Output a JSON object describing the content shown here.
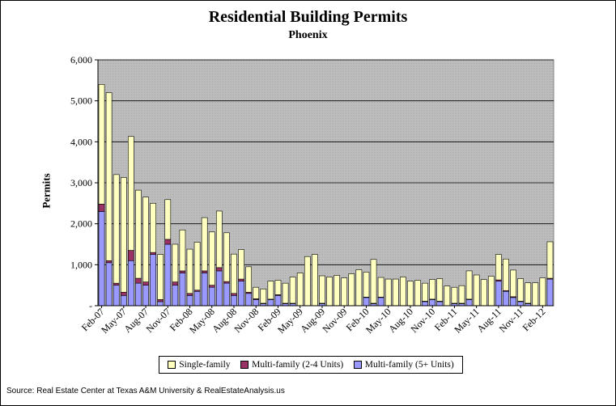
{
  "colors": {
    "single_family": "#ffffc0",
    "multi_2_4": "#993366",
    "multi_5plus": "#9999ff",
    "plot_bg": "#c0c0c0"
  },
  "chart_data": {
    "type": "bar",
    "stacked": true,
    "title": "Residential Building Permits",
    "subtitle": "Phoenix",
    "ylabel": "Permits",
    "xlabel": "",
    "ylim": [
      0,
      6000
    ],
    "yticks": [
      0,
      1000,
      2000,
      3000,
      4000,
      5000,
      6000
    ],
    "ytick_labels": [
      "-",
      "1,000",
      "2,000",
      "3,000",
      "4,000",
      "5,000",
      "6,000"
    ],
    "grid": true,
    "legend_position": "bottom",
    "x_tick_labels": [
      {
        "index": 0,
        "label": "Feb-07"
      },
      {
        "index": 3,
        "label": "May-07"
      },
      {
        "index": 6,
        "label": "Aug-07"
      },
      {
        "index": 9,
        "label": "Nov-07"
      },
      {
        "index": 12,
        "label": "Feb-08"
      },
      {
        "index": 15,
        "label": "May-08"
      },
      {
        "index": 18,
        "label": "Aug-08"
      },
      {
        "index": 21,
        "label": "Nov-08"
      },
      {
        "index": 24,
        "label": "Feb-09"
      },
      {
        "index": 27,
        "label": "May-09"
      },
      {
        "index": 30,
        "label": "Aug-09"
      },
      {
        "index": 33,
        "label": "Nov-09"
      },
      {
        "index": 36,
        "label": "Feb-10"
      },
      {
        "index": 39,
        "label": "May-10"
      },
      {
        "index": 42,
        "label": "Aug-10"
      },
      {
        "index": 45,
        "label": "Nov-10"
      },
      {
        "index": 48,
        "label": "Feb-11"
      },
      {
        "index": 51,
        "label": "May-11"
      },
      {
        "index": 54,
        "label": "Aug-11"
      },
      {
        "index": 57,
        "label": "Nov-11"
      },
      {
        "index": 60,
        "label": "Feb-12"
      }
    ],
    "series": [
      {
        "name": "Multi-family (5+ Units)",
        "color_key": "multi_5plus",
        "values": [
          2300,
          1050,
          500,
          250,
          1100,
          550,
          500,
          1250,
          100,
          1500,
          500,
          800,
          250,
          350,
          800,
          450,
          850,
          550,
          250,
          600,
          300,
          150,
          50,
          150,
          250,
          50,
          50,
          0,
          0,
          0,
          50,
          0,
          0,
          0,
          0,
          0,
          200,
          50,
          200,
          0,
          0,
          0,
          0,
          0,
          100,
          150,
          100,
          0,
          50,
          50,
          150,
          0,
          0,
          0,
          600,
          350,
          200,
          100,
          50,
          0,
          0,
          650
        ]
      },
      {
        "name": "Multi-family (2-4 Units)",
        "color_key": "multi_2_4",
        "values": [
          180,
          50,
          50,
          80,
          250,
          120,
          80,
          50,
          50,
          120,
          80,
          50,
          50,
          30,
          50,
          50,
          80,
          40,
          50,
          50,
          30,
          20,
          10,
          10,
          20,
          10,
          10,
          0,
          0,
          0,
          10,
          0,
          0,
          0,
          0,
          0,
          10,
          10,
          10,
          0,
          0,
          0,
          0,
          0,
          10,
          10,
          10,
          0,
          10,
          10,
          10,
          0,
          0,
          0,
          30,
          20,
          20,
          10,
          10,
          0,
          0,
          20
        ]
      },
      {
        "name": "Single-family",
        "color_key": "single_family",
        "values": [
          2920,
          4100,
          2650,
          2800,
          2780,
          2150,
          2070,
          1200,
          1100,
          970,
          920,
          1000,
          1080,
          1170,
          1300,
          1300,
          1380,
          1190,
          960,
          720,
          620,
          280,
          350,
          440,
          350,
          490,
          640,
          800,
          1200,
          1250,
          670,
          700,
          740,
          680,
          780,
          880,
          610,
          1070,
          480,
          650,
          650,
          700,
          600,
          620,
          440,
          480,
          550,
          480,
          390,
          430,
          690,
          750,
          640,
          720,
          620,
          770,
          650,
          550,
          500,
          560,
          680,
          890
        ]
      }
    ]
  },
  "legend": {
    "items": [
      "Single-family",
      "Multi-family (2-4 Units)",
      "Multi-family (5+ Units)"
    ]
  },
  "source": "Source: Real Estate Center at Texas A&M University & RealEstateAnalysis.us"
}
